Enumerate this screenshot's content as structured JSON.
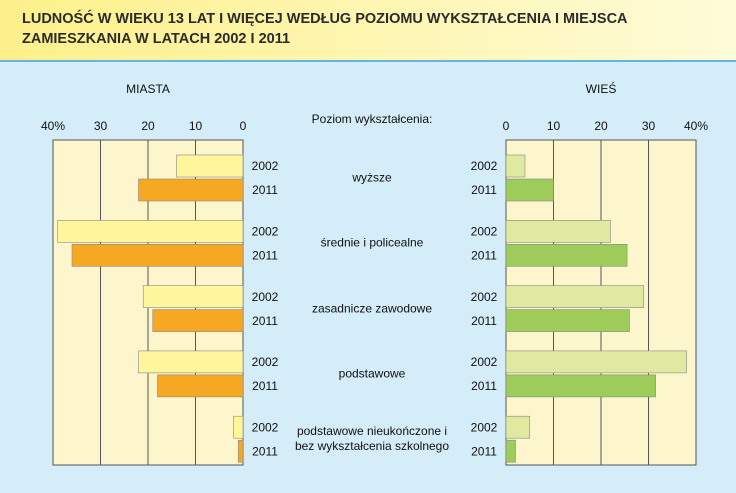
{
  "chart_data": {
    "type": "butterfly-bar",
    "title": "LUDNOŚĆ W WIEKU 13 LAT I WIĘCEJ WEDŁUG POZIOMU WYKSZTAŁCENIA I MIEJSCA ZAMIESZKANIA W LATACH 2002 I 2011",
    "category_axis_label": "Poziom wykształcenia:",
    "categories": [
      "wyższe",
      "średnie i policealne",
      "zasadnicze zawodowe",
      "podstawowe",
      "podstawowe nieukończone i bez wykształcenia szkolnego"
    ],
    "grid": true,
    "panels": [
      {
        "title": "MIASTA",
        "x_reversed": true,
        "xlim": [
          0,
          40
        ],
        "xticks": [
          0,
          10,
          20,
          30,
          {
            "value": 40,
            "label": "40%"
          }
        ],
        "series": [
          {
            "name": "2002",
            "color": "#fff59a",
            "values": [
              14,
              39,
              21,
              22,
              2
            ]
          },
          {
            "name": "2011",
            "color": "#f7a823",
            "values": [
              22,
              36,
              19,
              18,
              1
            ]
          }
        ]
      },
      {
        "title": "WIEŚ",
        "x_reversed": false,
        "xlim": [
          0,
          40
        ],
        "xticks": [
          0,
          10,
          20,
          30,
          {
            "value": 40,
            "label": "40%"
          }
        ],
        "series": [
          {
            "name": "2002",
            "color": "#dfeaa0",
            "values": [
              4,
              22,
              29,
              38,
              5
            ]
          },
          {
            "name": "2011",
            "color": "#9dcc5a",
            "values": [
              10,
              25.5,
              26,
              31.5,
              2
            ]
          }
        ]
      }
    ]
  }
}
